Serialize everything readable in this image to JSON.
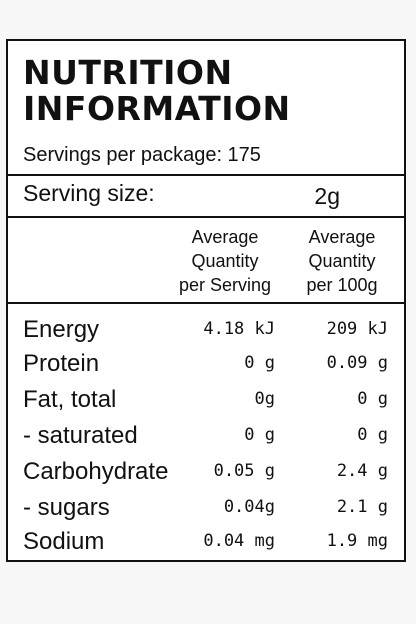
{
  "label": {
    "title_line1": "NUTRITION",
    "title_line2": "INFORMATION",
    "servings_per_package": "Servings per package: 175",
    "serving_size_label": "Serving size:",
    "serving_size_value": "2g"
  },
  "columns": {
    "per_serving": [
      "Average",
      "Quantity",
      "per Serving"
    ],
    "per_100g": [
      "Average",
      "Quantity",
      "per 100g"
    ]
  },
  "nutrients": [
    {
      "name": "Energy",
      "per_serving": "4.18 kJ",
      "per_100g": "209 kJ"
    },
    {
      "name": "Protein",
      "per_serving": "0 g",
      "per_100g": "0.09 g"
    },
    {
      "name": "Fat, total",
      "per_serving": "0g",
      "per_100g": "0 g"
    },
    {
      "name": "- saturated",
      "per_serving": "0 g",
      "per_100g": "0 g"
    },
    {
      "name": "Carbohydrate",
      "per_serving": "0.05 g",
      "per_100g": "2.4 g"
    },
    {
      "name": "- sugars",
      "per_serving": "0.04g",
      "per_100g": "2.1 g"
    },
    {
      "name": "Sodium",
      "per_serving": "0.04 mg",
      "per_100g": "1.9 mg"
    }
  ]
}
